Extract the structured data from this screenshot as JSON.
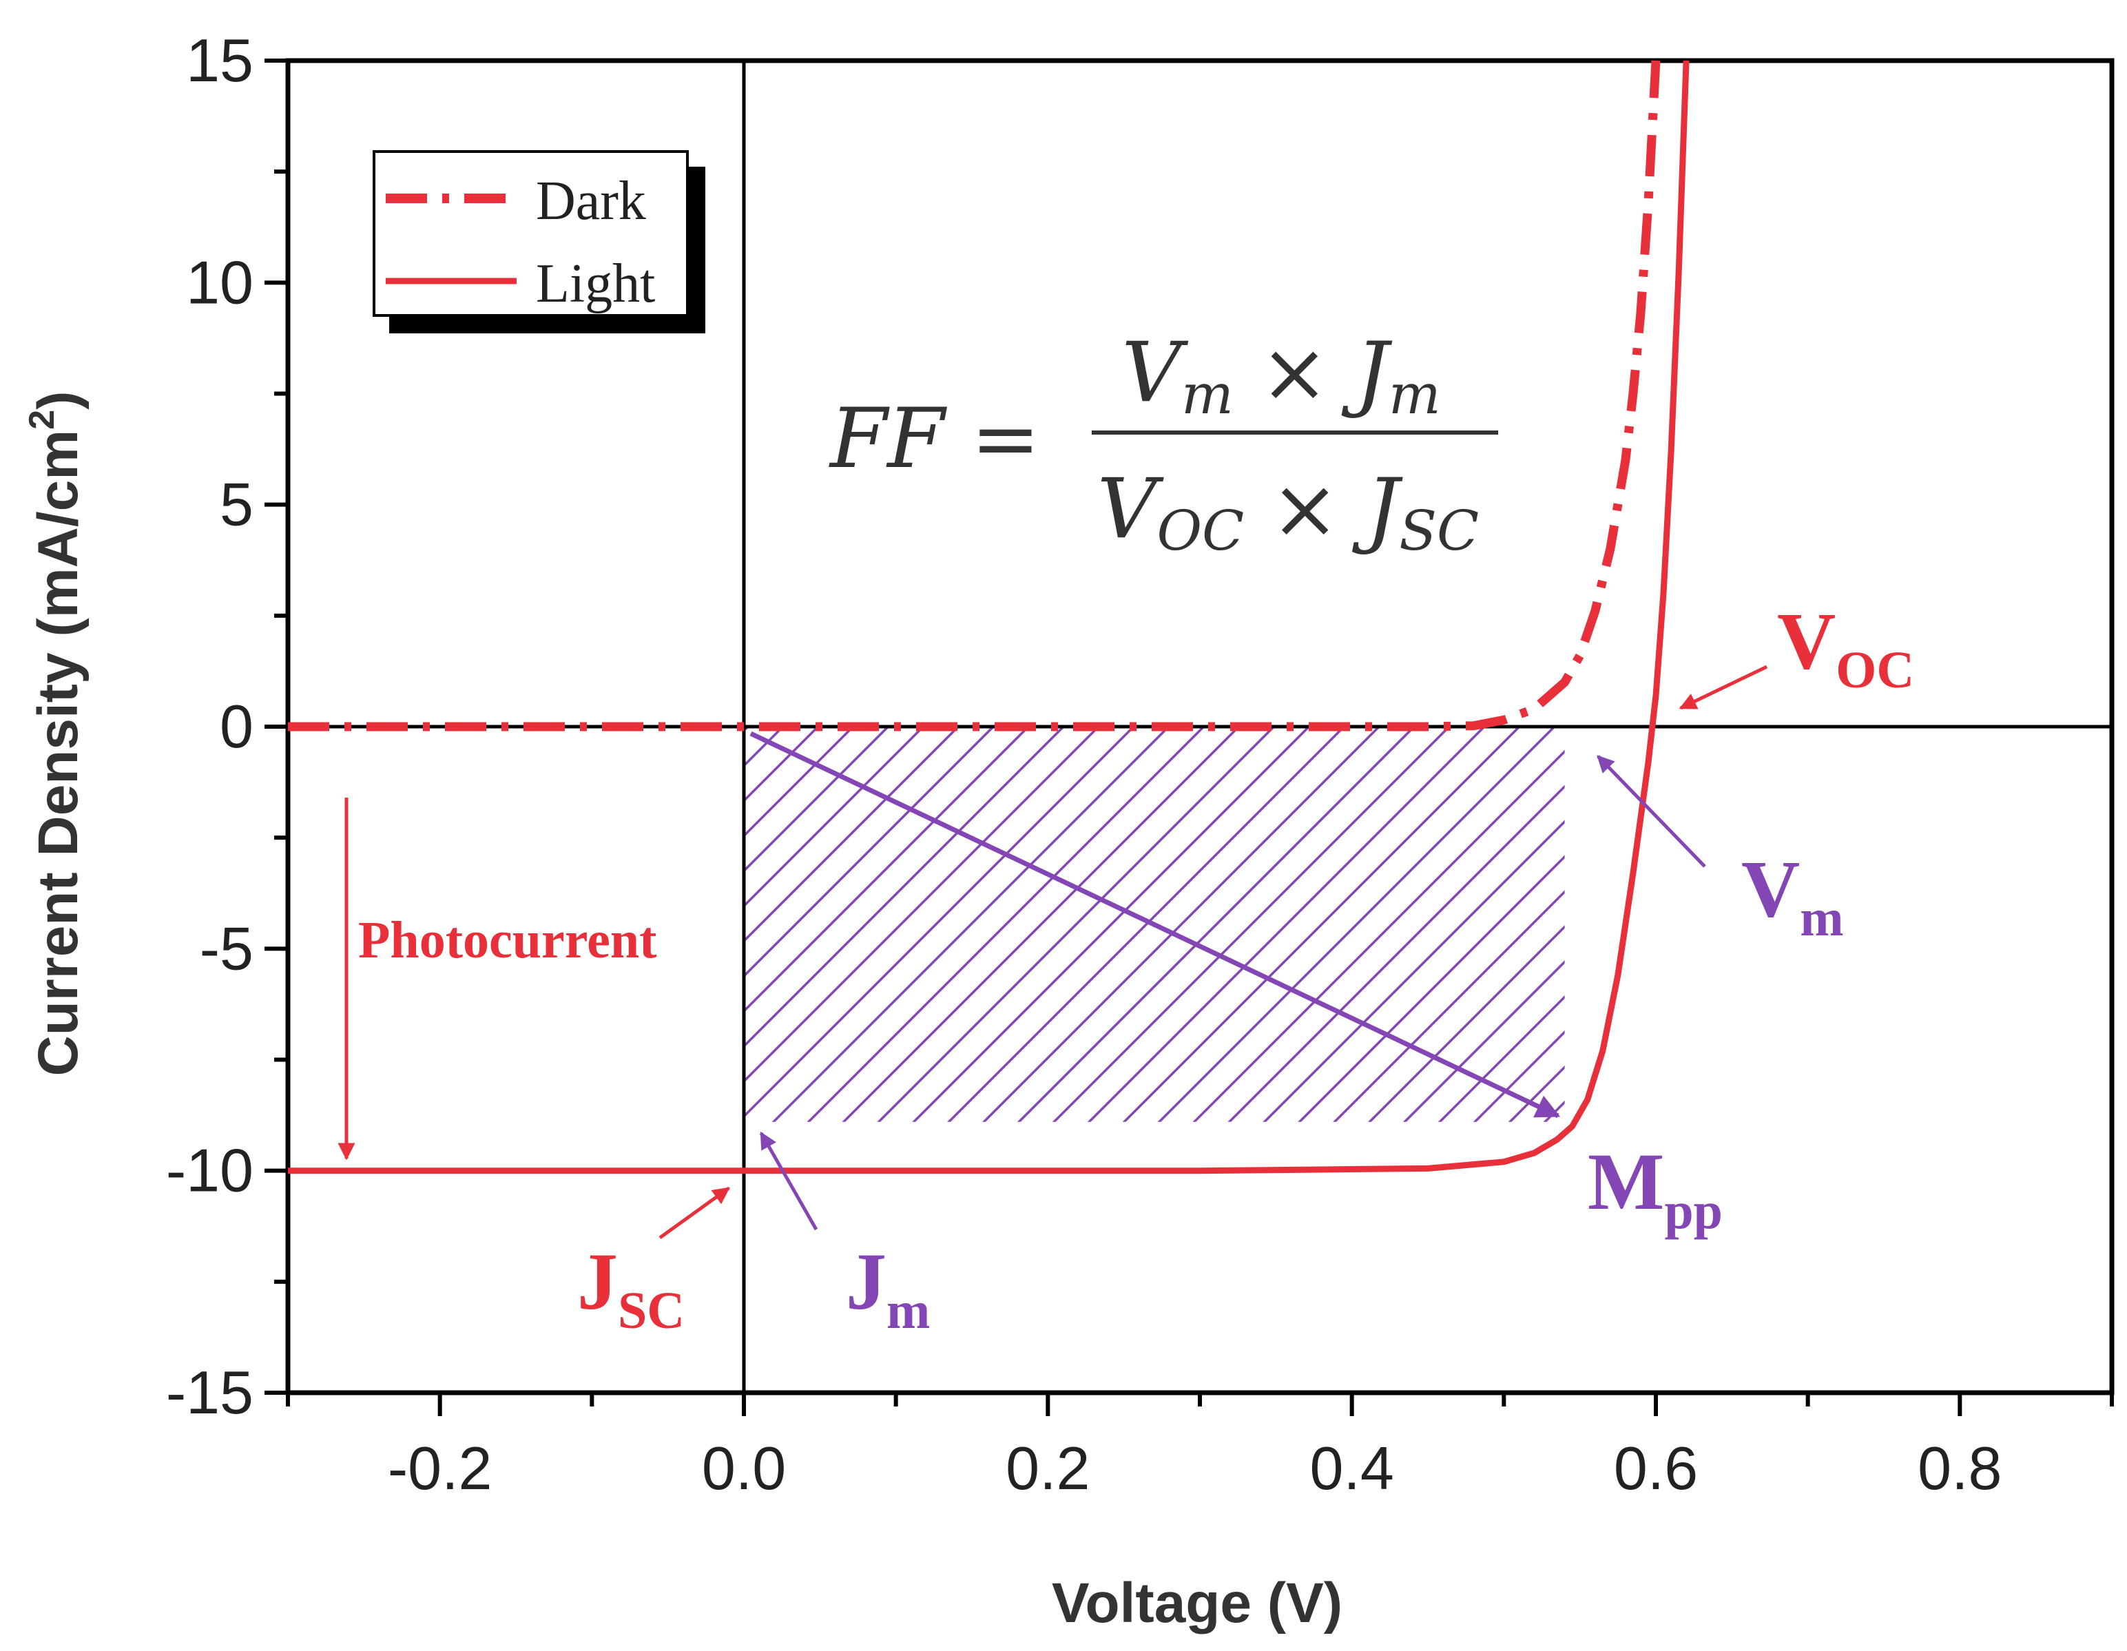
{
  "chart_data": {
    "type": "line",
    "xlabel": "Voltage (V)",
    "ylabel": "Current Density (mA/cm",
    "ylabel_superscript": "2",
    "ylabel_close": ")",
    "xlim": [
      -0.3,
      0.9
    ],
    "ylim": [
      -15,
      15
    ],
    "x_ticks": [
      -0.2,
      0.0,
      0.2,
      0.4,
      0.6,
      0.8
    ],
    "x_tick_labels": [
      "-0.2",
      "0.0",
      "0.2",
      "0.4",
      "0.6",
      "0.8"
    ],
    "y_ticks": [
      -15,
      -10,
      -5,
      0,
      5,
      10,
      15
    ],
    "y_tick_labels": [
      "-15",
      "-10",
      "-5",
      "0",
      "5",
      "10",
      "15"
    ],
    "legend_position": "top-left",
    "legend": [
      {
        "name": "Dark",
        "style": "dash-dot"
      },
      {
        "name": "Light",
        "style": "solid"
      }
    ],
    "series": [
      {
        "name": "Dark",
        "style": "dash-dot",
        "color": "#e8303a",
        "x": [
          -0.3,
          -0.1,
          0.1,
          0.3,
          0.45,
          0.48,
          0.5,
          0.52,
          0.54,
          0.55,
          0.56,
          0.57,
          0.58,
          0.585,
          0.59,
          0.595,
          0.6
        ],
        "y": [
          0,
          0,
          0,
          0,
          0,
          0.02,
          0.15,
          0.4,
          1.0,
          1.6,
          2.6,
          4.0,
          6.0,
          7.5,
          9.3,
          11.8,
          15
        ]
      },
      {
        "name": "Light",
        "style": "solid",
        "color": "#e8303a",
        "x": [
          -0.3,
          0.0,
          0.3,
          0.45,
          0.5,
          0.52,
          0.535,
          0.545,
          0.555,
          0.565,
          0.575,
          0.585,
          0.595,
          0.6,
          0.605,
          0.61,
          0.615,
          0.62
        ],
        "y": [
          -10,
          -10,
          -10,
          -9.95,
          -9.8,
          -9.6,
          -9.3,
          -9.0,
          -8.4,
          -7.3,
          -5.6,
          -3.3,
          -0.8,
          0.7,
          3.0,
          6.2,
          10.2,
          15
        ]
      }
    ],
    "hatched_region": {
      "x": [
        0.0,
        0.54
      ],
      "y": [
        -8.9,
        0
      ],
      "color": "#8346b4"
    },
    "formula": {
      "lhs": "FF =",
      "num_V": "V",
      "num_V_sub": "m",
      "times": "×",
      "num_J": "J",
      "num_J_sub": "m",
      "den_V": "V",
      "den_V_sub": "OC",
      "den_J": "J",
      "den_J_sub": "SC"
    },
    "annotations": {
      "photocurrent": "Photocurrent",
      "voc": {
        "main": "V",
        "sub": "OC"
      },
      "vm": {
        "main": "V",
        "sub": "m"
      },
      "mpp": {
        "main": "M",
        "sub": "pp"
      },
      "jsc": {
        "main": "J",
        "sub": "SC"
      },
      "jm": {
        "main": "J",
        "sub": "m"
      }
    },
    "colors": {
      "red": "#e8303a",
      "purple": "#8346b4",
      "axis": "#000000"
    }
  }
}
